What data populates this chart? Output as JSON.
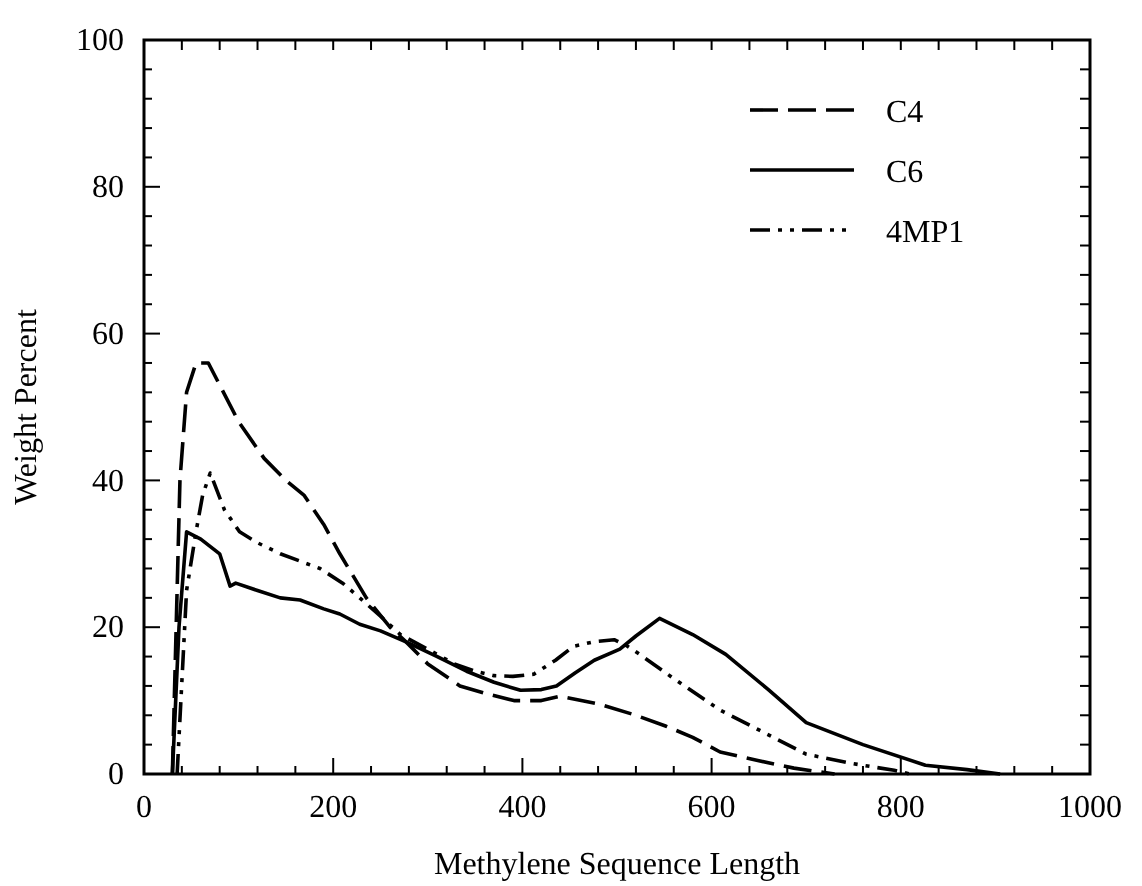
{
  "chart_data": {
    "type": "line",
    "xlabel": "Methylene Sequence Length",
    "ylabel": "Weight Percent",
    "xlim": [
      0,
      1000
    ],
    "xticks": [
      0,
      200,
      400,
      600,
      800,
      1000
    ],
    "ylim": [
      0,
      100
    ],
    "yticks": [
      0,
      20,
      40,
      60,
      80,
      100
    ],
    "grid": false,
    "legend": "top right",
    "marker": "none",
    "series": [
      {
        "name": "C4",
        "color": "#000000",
        "line_style": "dashed",
        "x": [
          30,
          38,
          45,
          55,
          68,
          80,
          100,
          127,
          150,
          169,
          190,
          207,
          235,
          260,
          277,
          300,
          334,
          360,
          391,
          420,
          440,
          482,
          520,
          552,
          580,
          609,
          650,
          687,
          730
        ],
        "values": [
          0,
          40,
          52,
          56,
          56,
          53,
          48,
          43,
          40,
          38,
          34,
          30,
          24,
          20,
          18,
          15,
          12,
          11,
          10,
          10,
          10.6,
          9.5,
          8,
          6.5,
          5,
          3,
          1.8,
          0.8,
          0
        ]
      },
      {
        "name": "C6",
        "color": "#000000",
        "line_style": "solid",
        "x": [
          30,
          37,
          45,
          60,
          80,
          91,
          97,
          120,
          144,
          165,
          190,
          207,
          228,
          250,
          277,
          310,
          341,
          370,
          398,
          420,
          436,
          456,
          476,
          503,
          520,
          545,
          580,
          615,
          660,
          700,
          760,
          826,
          870,
          905
        ],
        "values": [
          0,
          20,
          33,
          32,
          30,
          25.6,
          26,
          25,
          24,
          23.7,
          22.5,
          21.8,
          20.4,
          19.5,
          18,
          16,
          14,
          12.5,
          11.4,
          11.5,
          12,
          13.8,
          15.5,
          17,
          18.8,
          21.2,
          19,
          16.3,
          11.5,
          7,
          4,
          1.2,
          0.6,
          0
        ]
      },
      {
        "name": "4MP1",
        "color": "#000000",
        "line_style": "dotted",
        "x": [
          35,
          45,
          55,
          62,
          70,
          85,
          101,
          120,
          144,
          165,
          186,
          210,
          228,
          250,
          271,
          300,
          328,
          350,
          370,
          390,
          412,
          435,
          454,
          475,
          497,
          510,
          524,
          560,
          609,
          650,
          700,
          750,
          793,
          810
        ],
        "values": [
          0,
          25,
          33,
          38,
          41,
          36,
          33,
          31.5,
          30,
          29,
          28,
          26,
          24,
          21.5,
          19,
          17,
          15,
          14,
          13.4,
          13.3,
          13.6,
          15.5,
          17.4,
          18,
          18.3,
          17.5,
          16.3,
          13,
          8.7,
          6,
          2.7,
          1.4,
          0.5,
          0
        ]
      }
    ]
  }
}
